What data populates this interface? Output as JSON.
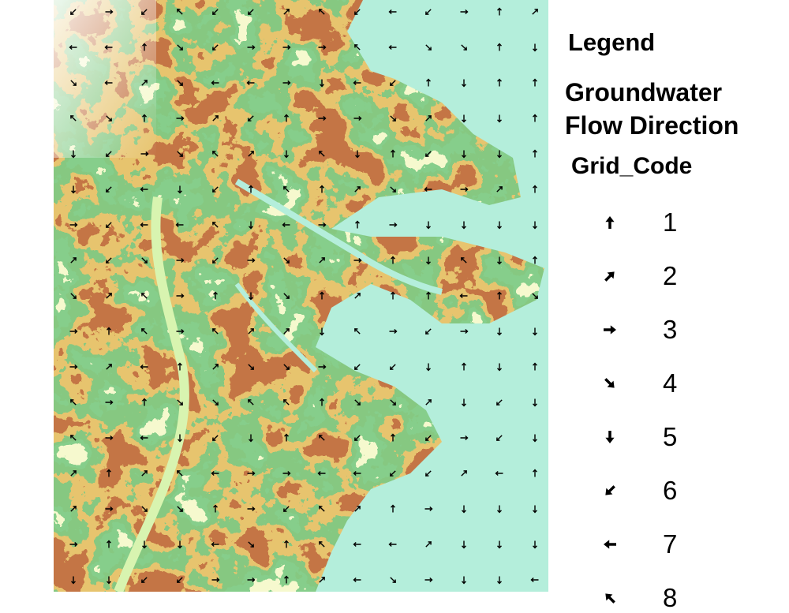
{
  "legend": {
    "title": "Legend",
    "layer": "Groundwater Flow Direction",
    "field": "Grid_Code",
    "items": [
      "1",
      "2",
      "3",
      "4",
      "5",
      "6",
      "7",
      "8"
    ]
  }
}
